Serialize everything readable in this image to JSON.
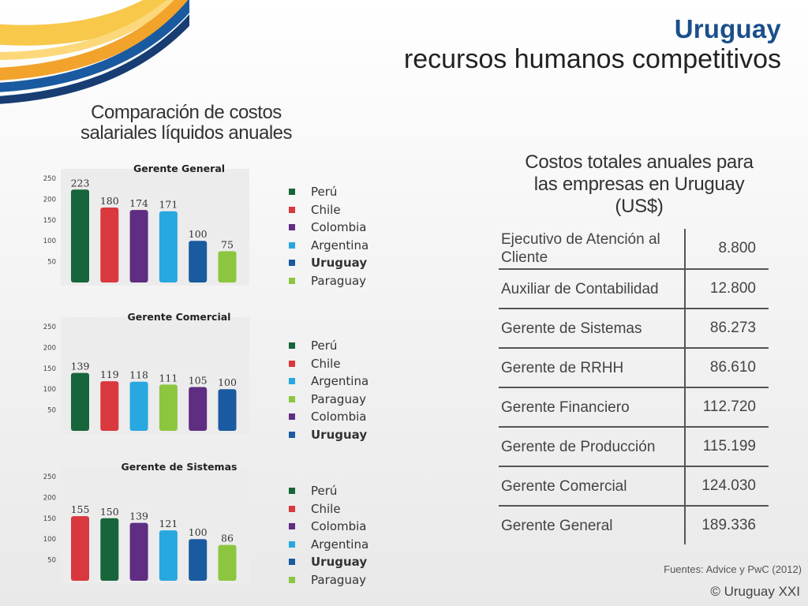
{
  "header": {
    "title": "Uruguay",
    "subtitle": "recursos humanos competitivos"
  },
  "left_title": [
    "Comparación de costos",
    "salariales líquidos anuales"
  ],
  "right_title": [
    "Costos totales anuales para",
    "las empresas en Uruguay",
    "(US$)"
  ],
  "colors": {
    "Perú": "#17653a",
    "Chile": "#d9383e",
    "Colombia": "#5f2d82",
    "Argentina": "#29a7df",
    "Uruguay": "#1a5aa0",
    "Paraguay": "#8cc63f"
  },
  "chart_data": [
    {
      "type": "bar",
      "title": "Gerente General",
      "categories": [
        "Perú",
        "Chile",
        "Colombia",
        "Argentina",
        "Uruguay",
        "Paraguay"
      ],
      "values": [
        223,
        180,
        174,
        171,
        100,
        75
      ],
      "yticks": [
        50,
        100,
        150,
        200,
        250
      ],
      "ylim": [
        0,
        250
      ],
      "grid": false,
      "legend": "right"
    },
    {
      "type": "bar",
      "title": "Gerente Comercial",
      "categories": [
        "Perú",
        "Chile",
        "Argentina",
        "Paraguay",
        "Colombia",
        "Uruguay"
      ],
      "values": [
        139,
        119,
        118,
        111,
        105,
        100
      ],
      "yticks": [
        50,
        100,
        150,
        200,
        250
      ],
      "ylim": [
        0,
        250
      ],
      "grid": false,
      "legend": "right"
    },
    {
      "type": "bar",
      "title": "Gerente de Sistemas",
      "categories": [
        "Perú",
        "Chile",
        "Colombia",
        "Argentina",
        "Uruguay",
        "Paraguay"
      ],
      "bar_colors": [
        "Chile",
        "Perú",
        "Colombia",
        "Argentina",
        "Uruguay",
        "Paraguay"
      ],
      "values": [
        155,
        150,
        139,
        121,
        100,
        86
      ],
      "yticks": [
        50,
        100,
        150,
        200,
        250
      ],
      "ylim": [
        0,
        250
      ],
      "grid": false,
      "legend": "right"
    }
  ],
  "cost_table": [
    {
      "label": "Ejecutivo de Atención al Cliente",
      "value": "8.800"
    },
    {
      "label": "Auxiliar de Contabilidad",
      "value": "12.800"
    },
    {
      "label": "Gerente de Sistemas",
      "value": "86.273"
    },
    {
      "label": "Gerente de RRHH",
      "value": "86.610"
    },
    {
      "label": "Gerente Financiero",
      "value": "112.720"
    },
    {
      "label": "Gerente de Producción",
      "value": "115.199"
    },
    {
      "label": "Gerente Comercial",
      "value": "124.030"
    },
    {
      "label": "Gerente General",
      "value": "189.336"
    }
  ],
  "footer": {
    "sources": "Fuentes: Advice y PwC (2012)",
    "copyright": "© Uruguay XXI"
  }
}
